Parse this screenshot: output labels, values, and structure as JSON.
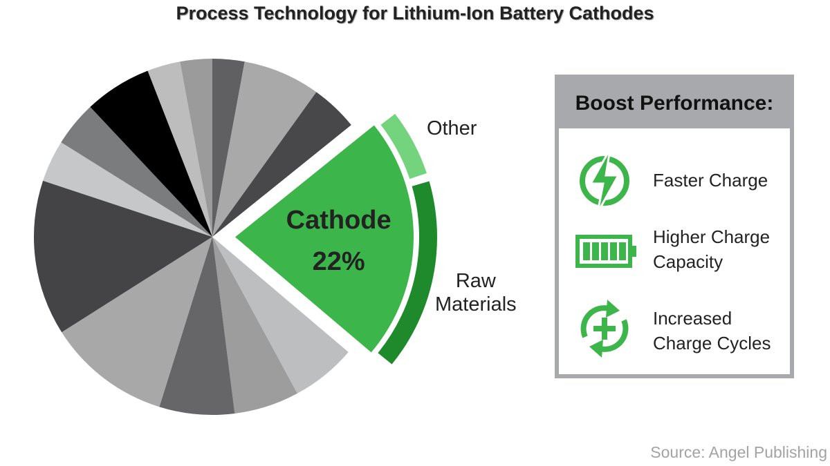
{
  "chart_data": {
    "type": "pie",
    "title": "Process Technology for Lithium-Ion Battery Cathodes",
    "categories": [
      null,
      null,
      null,
      "Cathode",
      null,
      null,
      null,
      null,
      null,
      null,
      null,
      null,
      null,
      null
    ],
    "values": [
      2.9,
      7.0,
      4.3,
      22,
      5.9,
      5.9,
      6.8,
      11.2,
      14.1,
      3.8,
      4.1,
      6.1,
      3.0,
      2.9
    ],
    "value_labels": [
      null,
      null,
      null,
      "22%",
      null,
      null,
      null,
      null,
      null,
      null,
      null,
      null,
      null,
      null
    ],
    "colors": [
      "#606062",
      "#a9a9aa",
      "#48484a",
      "#3cb54a",
      "#bdbebf",
      "#9d9d9e",
      "#666668",
      "#a8a8a9",
      "#444446",
      "#c5c7c9",
      "#7a7c7e",
      "#000000",
      "#bdbdbd",
      "#9b9b9c"
    ],
    "breakdown": {
      "categories": [
        "Other",
        "Raw Materials"
      ],
      "values": [
        6,
        16
      ],
      "colors": [
        "#74d47d",
        "#1e8a2c"
      ]
    }
  },
  "panel": {
    "title": "Boost Performance:",
    "items": [
      "Faster Charge",
      "Higher Charge Capacity",
      "Increased Charge Cycles"
    ]
  },
  "source": "Source: Angel Publishing"
}
